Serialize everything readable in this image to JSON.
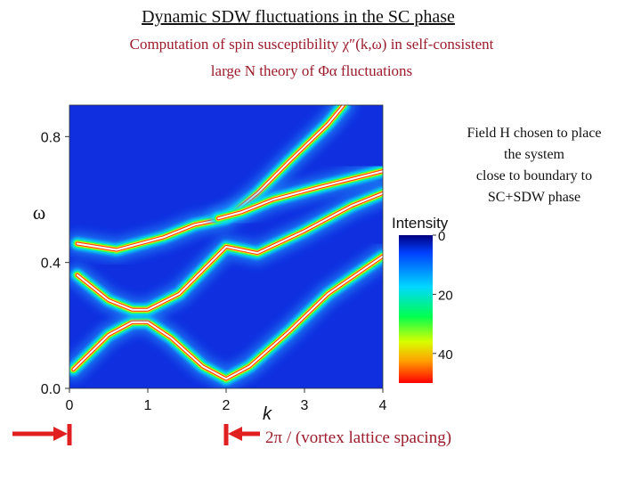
{
  "slide": {
    "title": "Dynamic SDW fluctuations in the SC phase",
    "subtitle_line1": "Computation of spin susceptibility χ″(k,ω) in self-consistent",
    "subtitle_line2": "large N theory of Φα fluctuations",
    "note_lines": [
      "Field H chosen to place",
      "the system",
      "close to boundary to",
      "SC+SDW phase"
    ],
    "annotation": "2π / (vortex lattice spacing)",
    "colors": {
      "title": "#111111",
      "subtitle": "#9b1c2c",
      "arrow": "#e02020",
      "plot_background": "#1030e0"
    }
  },
  "chart_data": {
    "type": "heatmap",
    "xlabel": "k",
    "ylabel": "ω",
    "xlim": [
      0,
      4
    ],
    "ylim": [
      0,
      0.9
    ],
    "x_ticks": [
      "0",
      "1",
      "2",
      "3",
      "4"
    ],
    "y_ticks": [
      "0.0",
      "0.4",
      "0.8"
    ],
    "colorbar": {
      "title": "Intensity",
      "ticks": [
        "0",
        "20",
        "40"
      ],
      "range": [
        0,
        50
      ],
      "colormap": [
        "#000080",
        "#0050ff",
        "#00e0ff",
        "#00ff60",
        "#ffff00",
        "#ff0000"
      ]
    },
    "bands": [
      {
        "points": [
          [
            0.05,
            0.06
          ],
          [
            0.5,
            0.17
          ],
          [
            0.8,
            0.21
          ],
          [
            1.0,
            0.21
          ],
          [
            1.3,
            0.16
          ],
          [
            1.7,
            0.07
          ],
          [
            2.0,
            0.03
          ],
          [
            2.3,
            0.07
          ],
          [
            2.8,
            0.18
          ],
          [
            3.3,
            0.3
          ],
          [
            4.0,
            0.42
          ]
        ]
      },
      {
        "points": [
          [
            0.1,
            0.36
          ],
          [
            0.5,
            0.28
          ],
          [
            0.8,
            0.25
          ],
          [
            1.0,
            0.25
          ],
          [
            1.4,
            0.3
          ],
          [
            1.8,
            0.4
          ],
          [
            2.0,
            0.45
          ],
          [
            2.4,
            0.43
          ],
          [
            3.0,
            0.5
          ],
          [
            3.6,
            0.58
          ],
          [
            4.0,
            0.62
          ]
        ]
      },
      {
        "points": [
          [
            0.1,
            0.46
          ],
          [
            0.6,
            0.44
          ],
          [
            1.2,
            0.48
          ],
          [
            1.6,
            0.52
          ],
          [
            2.0,
            0.54
          ],
          [
            2.4,
            0.62
          ],
          [
            2.8,
            0.72
          ],
          [
            3.3,
            0.84
          ],
          [
            3.5,
            0.9
          ]
        ]
      },
      {
        "points": [
          [
            1.9,
            0.54
          ],
          [
            2.2,
            0.56
          ],
          [
            2.6,
            0.6
          ],
          [
            3.2,
            0.64
          ],
          [
            4.0,
            0.69
          ]
        ]
      }
    ]
  }
}
